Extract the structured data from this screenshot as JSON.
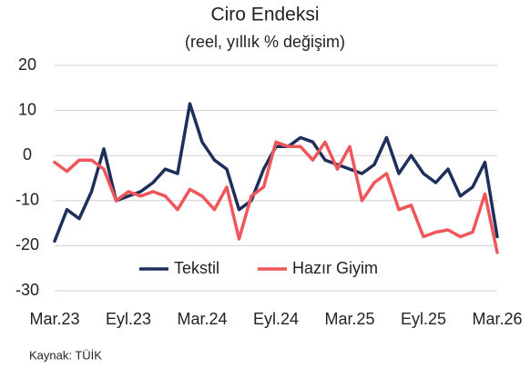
{
  "chart_data": {
    "type": "line",
    "title": "Ciro Endeksi",
    "subtitle": "(reel, yıllık % değişim)",
    "source": "Kaynak: TÜİK",
    "categories": [
      "Mar.23",
      null,
      null,
      null,
      null,
      null,
      "Eyl.23",
      null,
      null,
      null,
      null,
      null,
      "Mar.24",
      null,
      null,
      null,
      null,
      null,
      "Eyl.24",
      null,
      null,
      null,
      null,
      null,
      "Mar.25",
      null,
      null,
      null,
      null,
      null,
      "Eyl.25",
      null,
      null,
      null,
      null,
      null,
      "Mar.26"
    ],
    "series": [
      {
        "name": "Tekstil",
        "color": "#1f2f5c",
        "values": [
          -19,
          -12,
          -14,
          -8,
          1.5,
          -10,
          -9,
          -8,
          -6,
          -3,
          -4,
          11.5,
          3,
          -1,
          -3,
          -12,
          -10,
          -3,
          2,
          2,
          4,
          3,
          -1,
          -2,
          -3,
          -4,
          -2,
          4,
          -4,
          0,
          -4,
          -6,
          -3,
          -9,
          -7,
          -1.5,
          -18
        ]
      },
      {
        "name": "Hazır Giyim",
        "color": "#f0555a",
        "values": [
          -1.5,
          -3.5,
          -1,
          -1,
          -3,
          -10,
          -8,
          -9,
          -8,
          -9,
          -12,
          -7.5,
          -9,
          -12,
          -7,
          -18.5,
          -9,
          -7,
          3,
          2,
          2,
          -1,
          3,
          -3,
          2,
          -10,
          -6,
          -4,
          -12,
          -11,
          -18,
          -17,
          -16.5,
          -18,
          -17,
          -8.5,
          -21.5
        ]
      }
    ],
    "ylim": [
      -30,
      20
    ],
    "yticks": [
      -30,
      -20,
      -10,
      0,
      10,
      20
    ],
    "grid": true,
    "legend": "bottom"
  }
}
